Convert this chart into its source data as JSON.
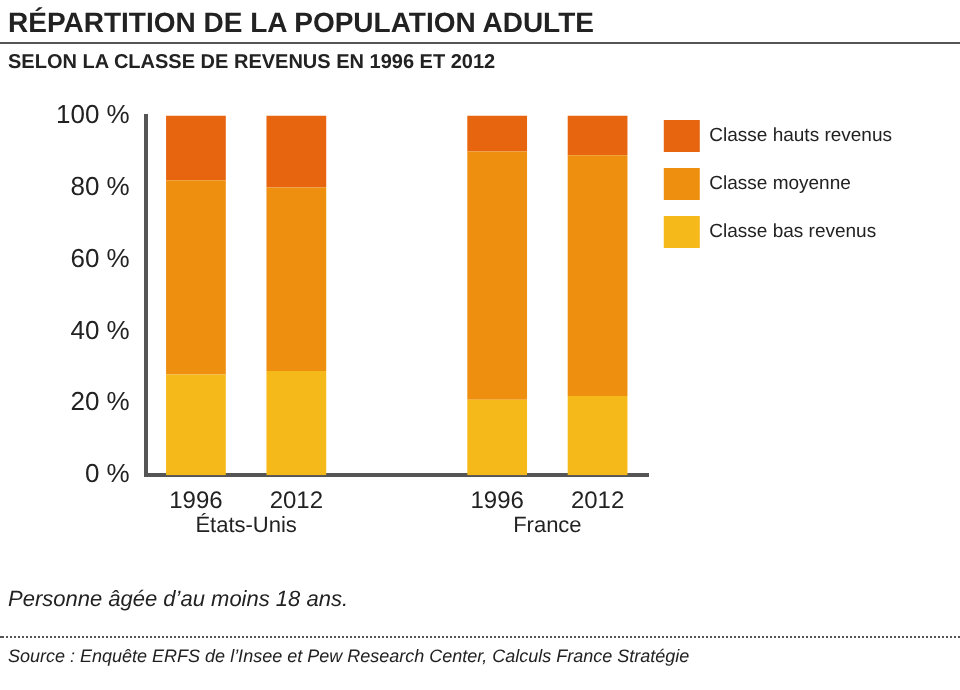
{
  "chart_data": {
    "type": "bar",
    "title": "RÉPARTITION DE LA POPULATION ADULTE",
    "subtitle": "SELON LA CLASSE DE REVENUS EN 1996 ET 2012",
    "categories": [
      "1996",
      "2012",
      null,
      "1996",
      "2012"
    ],
    "stacked": true,
    "series": [
      {
        "name": "Classe bas revenus",
        "color": "#f6b91a",
        "values": [
          28,
          29,
          null,
          21,
          22
        ]
      },
      {
        "name": "Classe moyenne",
        "color": "#ef8f10",
        "values": [
          54,
          51,
          null,
          69,
          67
        ]
      },
      {
        "name": "Classe hauts revenus",
        "color": "#e8650f",
        "values": [
          18,
          20,
          null,
          10,
          11
        ]
      }
    ],
    "ylim": [
      0,
      100
    ],
    "yticks": [
      {
        "value": 0,
        "label": "0 %"
      },
      {
        "value": 20,
        "label": "20 %"
      },
      {
        "value": 40,
        "label": "40 %"
      },
      {
        "value": 60,
        "label": "60 %"
      },
      {
        "value": 80,
        "label": "80 %"
      },
      {
        "value": 100,
        "label": "100 %"
      }
    ],
    "grid": false,
    "legend": "top right",
    "annotations": [
      "États-Unis",
      "France",
      "Personne âgée d’au moins 18 ans.",
      "Source : Enquête ERFS de l’Insee et Pew Research Center, Calculs France Stratégie"
    ]
  }
}
